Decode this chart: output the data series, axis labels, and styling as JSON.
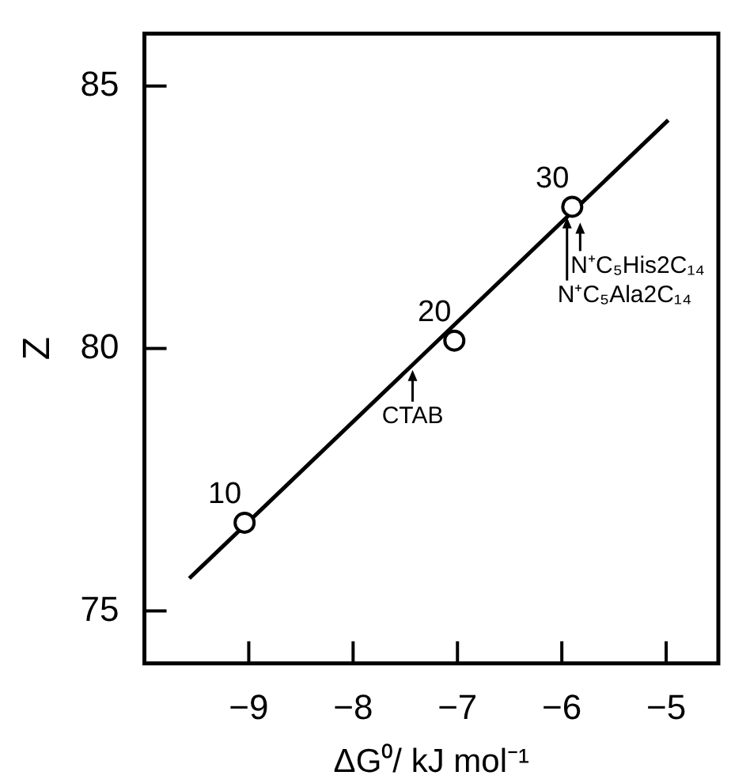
{
  "chart_data": {
    "type": "scatter",
    "xlabel": "ΔG⁰/ kJ mol⁻¹",
    "ylabel": "Z",
    "series": [
      {
        "type": "scatter",
        "x": [
          -9.04,
          -7.03,
          -5.9
        ],
        "values": [
          76.68,
          80.15,
          82.7
        ],
        "color": "#000000",
        "marker": "circle"
      },
      {
        "type": "line",
        "x": [
          -9.57,
          -4.98
        ],
        "values": [
          75.62,
          84.35
        ],
        "color": "#000000",
        "marker": "none",
        "line_style": "solid"
      }
    ],
    "xlim": [
      -10,
      -4.5
    ],
    "ylim": [
      74,
      86
    ],
    "xticks": [
      -9,
      -8,
      -7,
      -6,
      -5
    ],
    "yticks": [
      75,
      80,
      85
    ],
    "grid": false,
    "legend": false,
    "annotations": [
      {
        "text": "10",
        "x": -9.04,
        "y": 76.68
      },
      {
        "text": "20",
        "x": -7.03,
        "y": 80.15
      },
      {
        "text": "30",
        "x": -5.9,
        "y": 82.7
      },
      {
        "text": "CTAB",
        "x": -7.43,
        "y": 79.59
      },
      {
        "text": "N⁺C₅His2C₁₄",
        "x": -5.9,
        "y": 82.7
      },
      {
        "text": "N⁺C₅Ala2C₁₄",
        "x": -5.95,
        "y": 82.5
      }
    ]
  }
}
